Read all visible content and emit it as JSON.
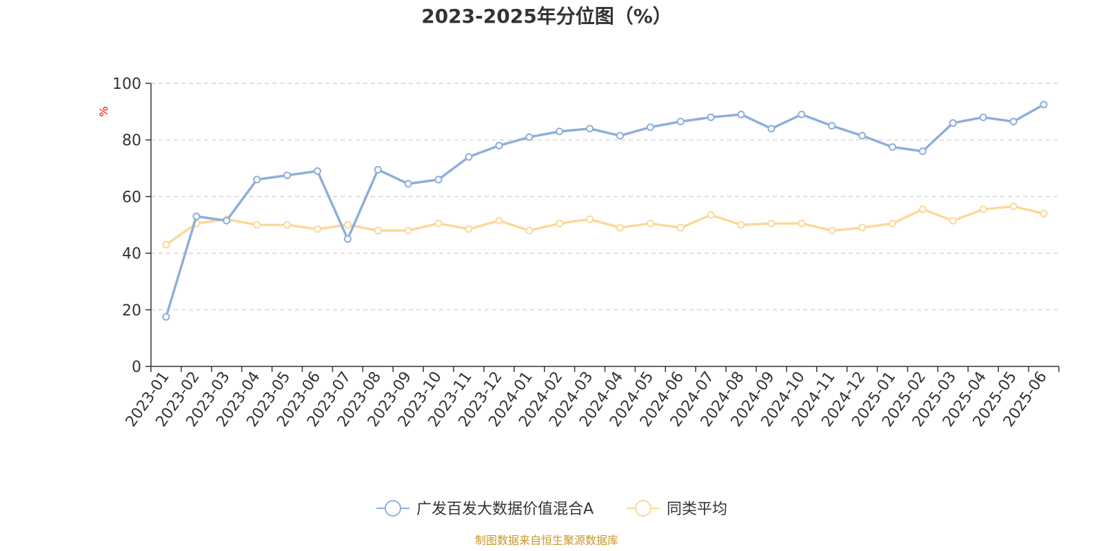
{
  "chart_data": {
    "type": "line",
    "title": "2023-2025年分位图（%）",
    "ylabel": "%",
    "ylim": [
      0,
      100
    ],
    "yticks": [
      "0",
      "20",
      "40",
      "60",
      "80",
      "100"
    ],
    "grid": true,
    "legend_position": "bottom",
    "categories": [
      "2023-01",
      "2023-02",
      "2023-03",
      "2023-04",
      "2023-05",
      "2023-06",
      "2023-07",
      "2023-08",
      "2023-09",
      "2023-10",
      "2023-11",
      "2023-12",
      "2024-01",
      "2024-02",
      "2024-03",
      "2024-04",
      "2024-05",
      "2024-06",
      "2024-07",
      "2024-08",
      "2024-09",
      "2024-10",
      "2024-11",
      "2024-12",
      "2025-01",
      "2025-02",
      "2025-03",
      "2025-04",
      "2025-05",
      "2025-06"
    ],
    "series": [
      {
        "name": "广发百发大数据价值混合A",
        "color": "#8eaedb",
        "values": [
          17.5,
          53,
          51.5,
          66,
          67.5,
          69,
          45,
          69.5,
          64.5,
          66,
          74,
          78,
          81,
          83,
          84,
          81.5,
          84.5,
          86.5,
          88,
          89,
          84,
          89,
          85,
          81.5,
          77.5,
          76,
          86,
          88,
          86.5,
          92.5
        ]
      },
      {
        "name": "同类平均",
        "color": "#fcd898",
        "values": [
          43,
          50.5,
          52,
          50,
          50,
          48.5,
          50,
          48,
          48,
          50.5,
          48.5,
          51.5,
          48,
          50.5,
          52,
          49,
          50.5,
          49,
          53.5,
          50,
          50.5,
          50.5,
          48,
          49,
          50.5,
          55.5,
          51.5,
          55.5,
          56.5,
          54
        ]
      }
    ]
  },
  "source": "制图数据来自恒生聚源数据库",
  "colors": {
    "ylabel": "#ff0000",
    "source": "#c8962e",
    "axis": "#333333",
    "grid": "#cccccc"
  }
}
